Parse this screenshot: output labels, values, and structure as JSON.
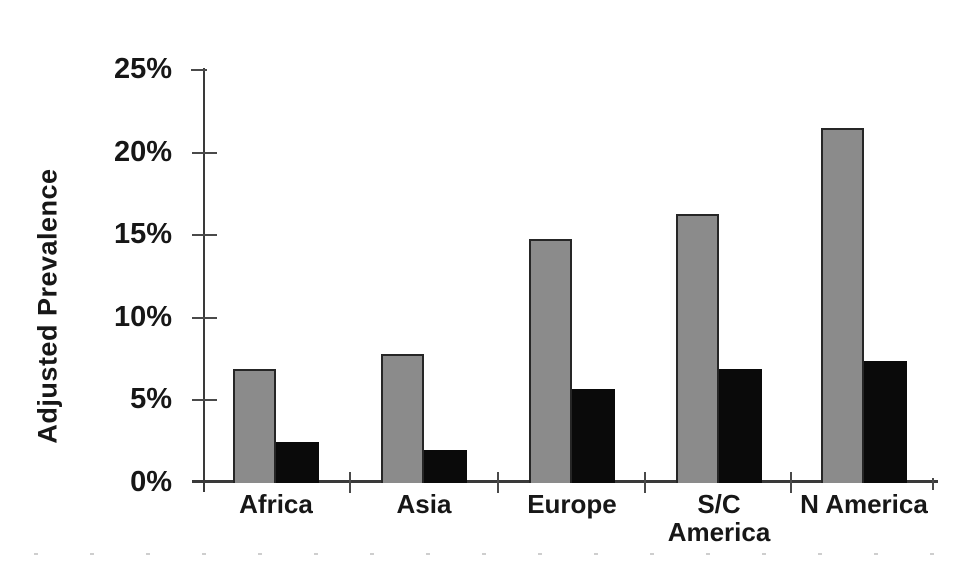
{
  "chart_data": {
    "type": "bar",
    "title": "",
    "ylabel": "Adjusted Prevalence",
    "xlabel": "",
    "categories": [
      {
        "label": "Africa",
        "lines": [
          "Africa"
        ]
      },
      {
        "label": "Asia",
        "lines": [
          "Asia"
        ]
      },
      {
        "label": "Europe",
        "lines": [
          "Europe"
        ]
      },
      {
        "label": "S/C America",
        "lines": [
          "S/C",
          "America"
        ]
      },
      {
        "label": "N America",
        "lines": [
          "N America"
        ]
      }
    ],
    "series": [
      {
        "name": "gray",
        "color": "#8b8b8b",
        "border_color": "#262626",
        "values": [
          6.9,
          7.8,
          14.8,
          16.3,
          21.5
        ]
      },
      {
        "name": "black",
        "color": "#0a0a0a",
        "border_color": "#0a0a0a",
        "values": [
          2.5,
          2.0,
          5.7,
          6.9,
          7.4
        ]
      }
    ],
    "ylim": [
      0,
      25
    ],
    "yticks": [
      {
        "value": 0,
        "label": "0%"
      },
      {
        "value": 5,
        "label": "5%"
      },
      {
        "value": 10,
        "label": "10%"
      },
      {
        "value": 15,
        "label": "15%"
      },
      {
        "value": 20,
        "label": "20%"
      },
      {
        "value": 25,
        "label": "25%"
      }
    ],
    "grid": false,
    "legend": "none",
    "axis_color": "#3a3a3a",
    "text_color": "#171717",
    "background": "#ffffff"
  }
}
